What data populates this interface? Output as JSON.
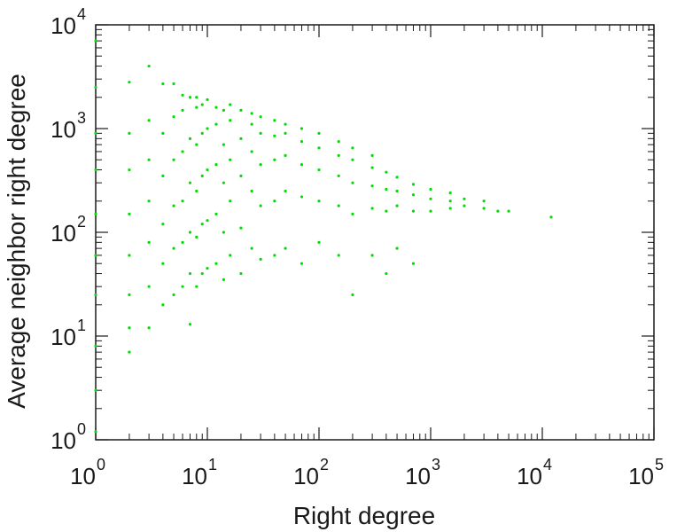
{
  "chart_data": {
    "type": "scatter",
    "xlabel": "Right degree",
    "ylabel": "Average neighbor right degree",
    "x_scale": "log",
    "y_scale": "log",
    "xlim": [
      1,
      100000
    ],
    "ylim": [
      1,
      10000
    ],
    "grid": false,
    "legend": "none",
    "x_tick_labels": [
      {
        "base": "10",
        "exp": "0",
        "value": 1
      },
      {
        "base": "10",
        "exp": "1",
        "value": 10
      },
      {
        "base": "10",
        "exp": "2",
        "value": 100
      },
      {
        "base": "10",
        "exp": "3",
        "value": 1000
      },
      {
        "base": "10",
        "exp": "4",
        "value": 10000
      },
      {
        "base": "10",
        "exp": "5",
        "value": 100000
      }
    ],
    "y_tick_labels": [
      {
        "base": "10",
        "exp": "0",
        "value": 1
      },
      {
        "base": "10",
        "exp": "1",
        "value": 10
      },
      {
        "base": "10",
        "exp": "2",
        "value": 100
      },
      {
        "base": "10",
        "exp": "3",
        "value": 1000
      },
      {
        "base": "10",
        "exp": "4",
        "value": 10000
      }
    ],
    "point_color": "#00dd00",
    "series": [
      {
        "points": [
          [
            1,
            1.2
          ],
          [
            1,
            3
          ],
          [
            1,
            8
          ],
          [
            1,
            25
          ],
          [
            1,
            60
          ],
          [
            1,
            150
          ],
          [
            1,
            400
          ],
          [
            1,
            900
          ],
          [
            1,
            2500
          ],
          [
            1,
            7000
          ],
          [
            2,
            7
          ],
          [
            2,
            12
          ],
          [
            2,
            25
          ],
          [
            2,
            60
          ],
          [
            2,
            150
          ],
          [
            2,
            400
          ],
          [
            2,
            900
          ],
          [
            2,
            2800
          ],
          [
            3,
            12
          ],
          [
            3,
            30
          ],
          [
            3,
            80
          ],
          [
            3,
            200
          ],
          [
            3,
            500
          ],
          [
            3,
            1200
          ],
          [
            3,
            4000
          ],
          [
            4,
            20
          ],
          [
            4,
            50
          ],
          [
            4,
            120
          ],
          [
            4,
            350
          ],
          [
            4,
            900
          ],
          [
            4,
            2700
          ],
          [
            5,
            25
          ],
          [
            5,
            70
          ],
          [
            5,
            180
          ],
          [
            5,
            500
          ],
          [
            5,
            1300
          ],
          [
            5,
            2700
          ],
          [
            6,
            30
          ],
          [
            6,
            80
          ],
          [
            6,
            200
          ],
          [
            6,
            600
          ],
          [
            6,
            1500
          ],
          [
            6,
            2100
          ],
          [
            7,
            13
          ],
          [
            7,
            40
          ],
          [
            7,
            100
          ],
          [
            7,
            300
          ],
          [
            7,
            800
          ],
          [
            7,
            2000
          ],
          [
            8,
            30
          ],
          [
            8,
            90
          ],
          [
            8,
            250
          ],
          [
            8,
            700
          ],
          [
            8,
            1600
          ],
          [
            8,
            2000
          ],
          [
            9,
            40
          ],
          [
            9,
            120
          ],
          [
            9,
            350
          ],
          [
            9,
            900
          ],
          [
            9,
            1700
          ],
          [
            10,
            45
          ],
          [
            10,
            130
          ],
          [
            10,
            400
          ],
          [
            10,
            1000
          ],
          [
            10,
            1900
          ],
          [
            12,
            50
          ],
          [
            12,
            150
          ],
          [
            12,
            450
          ],
          [
            12,
            1100
          ],
          [
            12,
            1600
          ],
          [
            14,
            35
          ],
          [
            14,
            100
          ],
          [
            14,
            300
          ],
          [
            14,
            700
          ],
          [
            14,
            1500
          ],
          [
            16,
            60
          ],
          [
            16,
            200
          ],
          [
            16,
            500
          ],
          [
            16,
            1200
          ],
          [
            16,
            1700
          ],
          [
            20,
            40
          ],
          [
            20,
            110
          ],
          [
            20,
            350
          ],
          [
            20,
            800
          ],
          [
            20,
            1500
          ],
          [
            25,
            70
          ],
          [
            25,
            250
          ],
          [
            25,
            600
          ],
          [
            25,
            1100
          ],
          [
            25,
            1400
          ],
          [
            30,
            55
          ],
          [
            30,
            180
          ],
          [
            30,
            450
          ],
          [
            30,
            900
          ],
          [
            30,
            1300
          ],
          [
            40,
            60
          ],
          [
            40,
            200
          ],
          [
            40,
            500
          ],
          [
            40,
            850
          ],
          [
            40,
            1200
          ],
          [
            50,
            70
          ],
          [
            50,
            250
          ],
          [
            50,
            550
          ],
          [
            50,
            900
          ],
          [
            50,
            1100
          ],
          [
            70,
            50
          ],
          [
            70,
            220
          ],
          [
            70,
            450
          ],
          [
            70,
            750
          ],
          [
            70,
            1000
          ],
          [
            100,
            80
          ],
          [
            100,
            200
          ],
          [
            100,
            400
          ],
          [
            100,
            650
          ],
          [
            100,
            900
          ],
          [
            150,
            60
          ],
          [
            150,
            180
          ],
          [
            150,
            350
          ],
          [
            150,
            550
          ],
          [
            150,
            750
          ],
          [
            200,
            25
          ],
          [
            200,
            150
          ],
          [
            200,
            300
          ],
          [
            200,
            500
          ],
          [
            200,
            650
          ],
          [
            300,
            60
          ],
          [
            300,
            170
          ],
          [
            300,
            280
          ],
          [
            300,
            420
          ],
          [
            300,
            550
          ],
          [
            400,
            40
          ],
          [
            400,
            160
          ],
          [
            400,
            260
          ],
          [
            400,
            380
          ],
          [
            500,
            70
          ],
          [
            500,
            180
          ],
          [
            500,
            250
          ],
          [
            500,
            340
          ],
          [
            700,
            50
          ],
          [
            700,
            160
          ],
          [
            700,
            230
          ],
          [
            700,
            290
          ],
          [
            1000,
            160
          ],
          [
            1000,
            210
          ],
          [
            1000,
            260
          ],
          [
            1500,
            170
          ],
          [
            1500,
            200
          ],
          [
            1500,
            240
          ],
          [
            2000,
            180
          ],
          [
            2000,
            210
          ],
          [
            3000,
            170
          ],
          [
            3000,
            200
          ],
          [
            4000,
            160
          ],
          [
            5000,
            160
          ],
          [
            12000,
            140
          ]
        ]
      }
    ]
  }
}
